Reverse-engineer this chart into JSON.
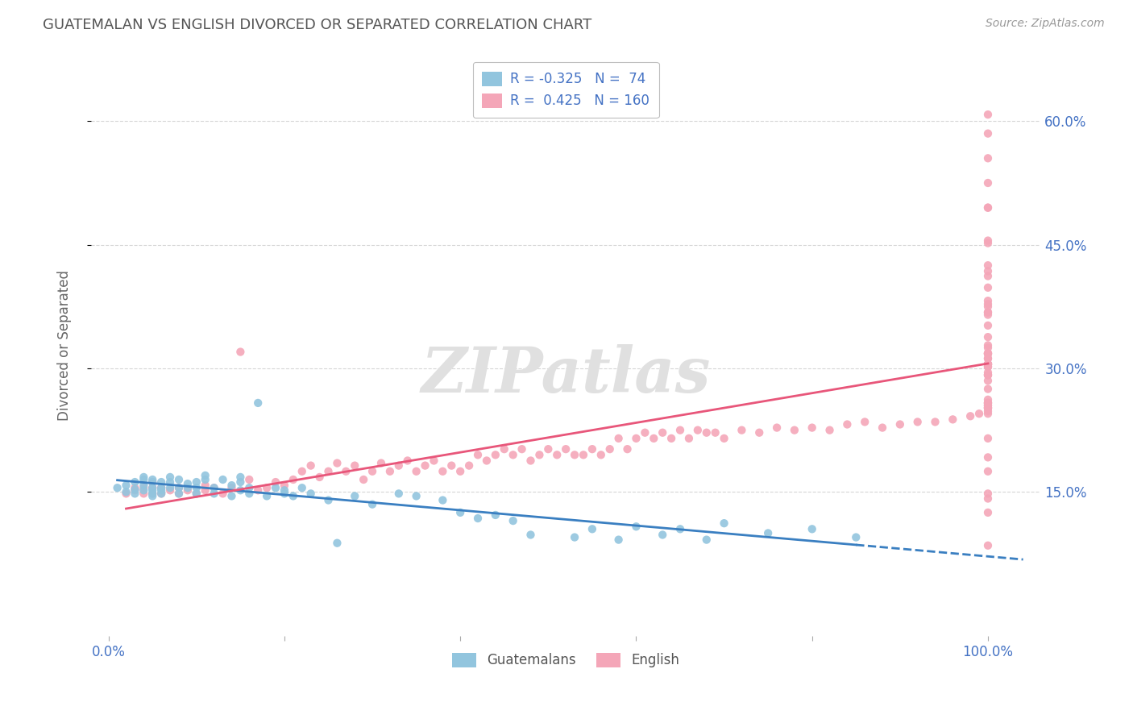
{
  "title": "GUATEMALAN VS ENGLISH DIVORCED OR SEPARATED CORRELATION CHART",
  "source": "Source: ZipAtlas.com",
  "ylabel": "Divorced or Separated",
  "xlim": [
    -0.02,
    1.06
  ],
  "ylim": [
    -0.025,
    0.68
  ],
  "watermark": "ZIPatlas",
  "blue_color": "#92c5de",
  "pink_color": "#f4a6b8",
  "blue_line_color": "#3a7fc1",
  "pink_line_color": "#e8567a",
  "title_color": "#555555",
  "axis_label_color": "#4472c4",
  "guatemalans_x": [
    0.01,
    0.02,
    0.02,
    0.03,
    0.03,
    0.03,
    0.04,
    0.04,
    0.04,
    0.04,
    0.05,
    0.05,
    0.05,
    0.05,
    0.05,
    0.05,
    0.06,
    0.06,
    0.06,
    0.06,
    0.07,
    0.07,
    0.07,
    0.08,
    0.08,
    0.08,
    0.09,
    0.09,
    0.1,
    0.1,
    0.1,
    0.11,
    0.11,
    0.12,
    0.12,
    0.13,
    0.14,
    0.14,
    0.15,
    0.15,
    0.15,
    0.16,
    0.16,
    0.17,
    0.18,
    0.19,
    0.2,
    0.2,
    0.21,
    0.22,
    0.23,
    0.25,
    0.26,
    0.28,
    0.3,
    0.33,
    0.35,
    0.38,
    0.4,
    0.42,
    0.44,
    0.46,
    0.48,
    0.53,
    0.55,
    0.58,
    0.6,
    0.63,
    0.65,
    0.68,
    0.7,
    0.75,
    0.8,
    0.85
  ],
  "guatemalans_y": [
    0.155,
    0.15,
    0.158,
    0.148,
    0.153,
    0.162,
    0.152,
    0.158,
    0.165,
    0.168,
    0.145,
    0.148,
    0.152,
    0.155,
    0.162,
    0.165,
    0.148,
    0.152,
    0.155,
    0.162,
    0.155,
    0.162,
    0.168,
    0.148,
    0.155,
    0.165,
    0.155,
    0.16,
    0.148,
    0.155,
    0.162,
    0.165,
    0.17,
    0.148,
    0.155,
    0.165,
    0.145,
    0.158,
    0.152,
    0.162,
    0.168,
    0.148,
    0.155,
    0.258,
    0.145,
    0.155,
    0.148,
    0.152,
    0.145,
    0.155,
    0.148,
    0.14,
    0.088,
    0.145,
    0.135,
    0.148,
    0.145,
    0.14,
    0.125,
    0.118,
    0.122,
    0.115,
    0.098,
    0.095,
    0.105,
    0.092,
    0.108,
    0.098,
    0.105,
    0.092,
    0.112,
    0.1,
    0.105,
    0.095
  ],
  "english_x": [
    0.02,
    0.03,
    0.03,
    0.04,
    0.04,
    0.05,
    0.05,
    0.05,
    0.06,
    0.06,
    0.07,
    0.08,
    0.08,
    0.09,
    0.1,
    0.11,
    0.11,
    0.12,
    0.13,
    0.14,
    0.15,
    0.16,
    0.17,
    0.18,
    0.19,
    0.2,
    0.21,
    0.22,
    0.23,
    0.24,
    0.25,
    0.26,
    0.27,
    0.28,
    0.29,
    0.3,
    0.31,
    0.32,
    0.33,
    0.34,
    0.35,
    0.36,
    0.37,
    0.38,
    0.39,
    0.4,
    0.41,
    0.42,
    0.43,
    0.44,
    0.45,
    0.46,
    0.47,
    0.48,
    0.49,
    0.5,
    0.51,
    0.52,
    0.53,
    0.54,
    0.55,
    0.56,
    0.57,
    0.58,
    0.59,
    0.6,
    0.61,
    0.62,
    0.63,
    0.64,
    0.65,
    0.66,
    0.67,
    0.68,
    0.69,
    0.7,
    0.72,
    0.74,
    0.76,
    0.78,
    0.8,
    0.82,
    0.84,
    0.86,
    0.88,
    0.9,
    0.92,
    0.94,
    0.96,
    0.98,
    0.99,
    1.0,
    1.0,
    1.0,
    1.0,
    1.0,
    1.0,
    1.0,
    1.0,
    1.0,
    1.0,
    1.0,
    1.0,
    1.0,
    1.0,
    1.0,
    1.0,
    1.0,
    1.0,
    1.0,
    1.0,
    1.0,
    1.0,
    1.0,
    1.0,
    1.0,
    1.0,
    1.0,
    1.0,
    1.0,
    1.0,
    1.0,
    1.0,
    1.0,
    1.0,
    1.0,
    1.0,
    1.0,
    1.0,
    1.0,
    1.0,
    1.0,
    1.0,
    1.0,
    1.0,
    1.0,
    1.0,
    1.0,
    1.0,
    1.0,
    1.0,
    1.0,
    1.0,
    1.0,
    1.0,
    1.0,
    1.0,
    1.0,
    1.0,
    1.0
  ],
  "english_y": [
    0.148,
    0.152,
    0.155,
    0.148,
    0.155,
    0.148,
    0.155,
    0.162,
    0.148,
    0.155,
    0.152,
    0.148,
    0.155,
    0.152,
    0.148,
    0.152,
    0.158,
    0.155,
    0.148,
    0.155,
    0.32,
    0.165,
    0.152,
    0.155,
    0.162,
    0.158,
    0.165,
    0.175,
    0.182,
    0.168,
    0.175,
    0.185,
    0.175,
    0.182,
    0.165,
    0.175,
    0.185,
    0.175,
    0.182,
    0.188,
    0.175,
    0.182,
    0.188,
    0.175,
    0.182,
    0.175,
    0.182,
    0.195,
    0.188,
    0.195,
    0.202,
    0.195,
    0.202,
    0.188,
    0.195,
    0.202,
    0.195,
    0.202,
    0.195,
    0.195,
    0.202,
    0.195,
    0.202,
    0.215,
    0.202,
    0.215,
    0.222,
    0.215,
    0.222,
    0.215,
    0.225,
    0.215,
    0.225,
    0.222,
    0.222,
    0.215,
    0.225,
    0.222,
    0.228,
    0.225,
    0.228,
    0.225,
    0.232,
    0.235,
    0.228,
    0.232,
    0.235,
    0.235,
    0.238,
    0.242,
    0.245,
    0.255,
    0.245,
    0.252,
    0.258,
    0.248,
    0.255,
    0.252,
    0.258,
    0.262,
    0.368,
    0.252,
    0.302,
    0.318,
    0.292,
    0.305,
    0.318,
    0.285,
    0.292,
    0.305,
    0.318,
    0.292,
    0.305,
    0.318,
    0.328,
    0.302,
    0.368,
    0.418,
    0.555,
    0.305,
    0.312,
    0.398,
    0.312,
    0.325,
    0.338,
    0.352,
    0.365,
    0.412,
    0.378,
    0.525,
    0.452,
    0.375,
    0.382,
    0.495,
    0.495,
    0.608,
    0.585,
    0.455,
    0.142,
    0.085,
    0.305,
    0.275,
    0.148,
    0.125,
    0.295,
    0.425,
    0.192,
    0.215,
    0.258,
    0.175
  ]
}
